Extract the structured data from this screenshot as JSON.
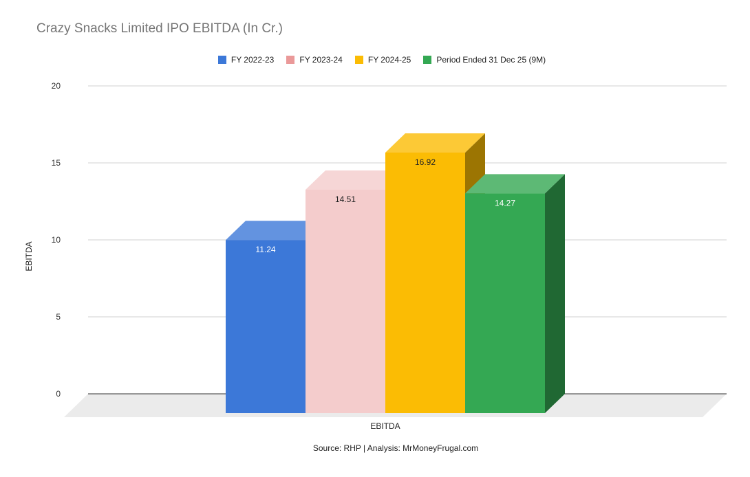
{
  "chart_data": {
    "type": "bar",
    "style": "3d",
    "title": "Crazy Snacks Limited IPO EBITDA (In Cr.)",
    "categories": [
      "EBITDA"
    ],
    "series": [
      {
        "name": "FY 2022-23",
        "values": [
          11.24
        ],
        "color": "#3c78d8"
      },
      {
        "name": "FY 2023-24",
        "values": [
          14.51
        ],
        "color": "#f4cccc"
      },
      {
        "name": "FY 2024-25",
        "values": [
          16.92
        ],
        "color": "#fbbc04"
      },
      {
        "name": "Period Ended 31 Dec 25 (9M)",
        "values": [
          14.27
        ],
        "color": "#34a853"
      }
    ],
    "legend_swatch_colors": [
      "#3c78d8",
      "#ea9999",
      "#fbbc04",
      "#34a853"
    ],
    "data_labels": [
      "11.24",
      "14.51",
      "16.92",
      "14.27"
    ],
    "xlabel": "EBITDA",
    "ylabel": "EBITDA",
    "ylim": [
      0,
      20
    ],
    "yticks": [
      0,
      5,
      10,
      15,
      20
    ],
    "grid": true,
    "legend_position": "top"
  },
  "source_note": "Source: RHP | Analysis: MrMoneyFrugal.com"
}
